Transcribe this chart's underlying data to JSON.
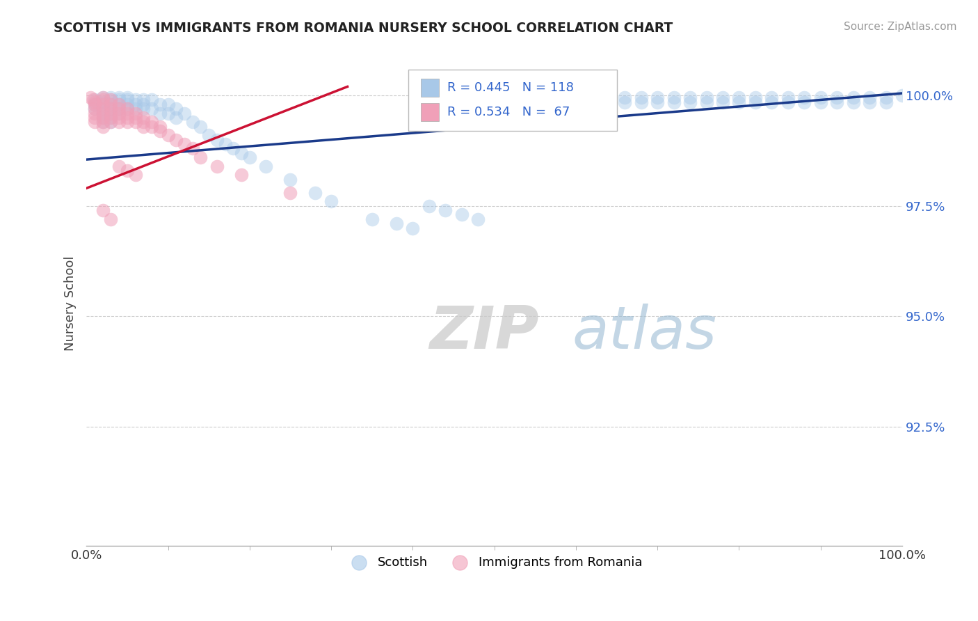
{
  "title": "SCOTTISH VS IMMIGRANTS FROM ROMANIA NURSERY SCHOOL CORRELATION CHART",
  "source_text": "Source: ZipAtlas.com",
  "ylabel": "Nursery School",
  "x_min": 0.0,
  "x_max": 1.0,
  "y_min": 0.898,
  "y_max": 1.008,
  "y_ticks": [
    0.925,
    0.95,
    0.975,
    1.0
  ],
  "y_tick_labels": [
    "92.5%",
    "95.0%",
    "97.5%",
    "100.0%"
  ],
  "x_tick_labels": [
    "0.0%",
    "100.0%"
  ],
  "blue_color": "#a8c8e8",
  "pink_color": "#f0a0b8",
  "blue_line_color": "#1a3a8a",
  "pink_line_color": "#cc1133",
  "legend_label_blue": "Scottish",
  "legend_label_pink": "Immigrants from Romania",
  "watermark_zip": "ZIP",
  "watermark_atlas": "atlas",
  "blue_line_x0": 0.0,
  "blue_line_x1": 1.0,
  "blue_line_y0": 0.9855,
  "blue_line_y1": 1.0005,
  "pink_line_x0": 0.0,
  "pink_line_x1": 0.32,
  "pink_line_y0": 0.979,
  "pink_line_y1": 1.002,
  "blue_scatter_x": [
    0.01,
    0.01,
    0.01,
    0.02,
    0.02,
    0.02,
    0.02,
    0.02,
    0.02,
    0.02,
    0.03,
    0.03,
    0.03,
    0.03,
    0.03,
    0.03,
    0.03,
    0.04,
    0.04,
    0.04,
    0.04,
    0.04,
    0.05,
    0.05,
    0.05,
    0.05,
    0.06,
    0.06,
    0.06,
    0.07,
    0.07,
    0.07,
    0.08,
    0.08,
    0.09,
    0.09,
    0.1,
    0.1,
    0.11,
    0.11,
    0.12,
    0.13,
    0.14,
    0.15,
    0.16,
    0.17,
    0.18,
    0.19,
    0.2,
    0.22,
    0.25,
    0.28,
    0.3,
    0.35,
    0.38,
    0.4,
    0.42,
    0.44,
    0.46,
    0.48,
    0.5,
    0.52,
    0.54,
    0.56,
    0.58,
    0.6,
    0.62,
    0.64,
    0.66,
    0.68,
    0.7,
    0.72,
    0.74,
    0.76,
    0.78,
    0.8,
    0.82,
    0.84,
    0.86,
    0.88,
    0.9,
    0.92,
    0.94,
    0.96,
    0.98,
    1.0,
    0.42,
    0.43,
    0.44,
    0.45,
    0.46,
    0.47,
    0.48,
    0.5,
    0.52,
    0.54,
    0.56,
    0.58,
    0.6,
    0.62,
    0.64,
    0.66,
    0.68,
    0.7,
    0.72,
    0.74,
    0.76,
    0.78,
    0.8,
    0.82,
    0.84,
    0.86,
    0.88,
    0.9,
    0.92,
    0.94,
    0.96,
    0.98
  ],
  "blue_scatter_y": [
    0.999,
    0.998,
    0.997,
    0.9995,
    0.9985,
    0.998,
    0.997,
    0.996,
    0.995,
    0.994,
    0.9995,
    0.999,
    0.998,
    0.997,
    0.996,
    0.995,
    0.994,
    0.9995,
    0.999,
    0.998,
    0.997,
    0.996,
    0.9995,
    0.999,
    0.998,
    0.997,
    0.999,
    0.998,
    0.997,
    0.999,
    0.998,
    0.997,
    0.999,
    0.997,
    0.998,
    0.996,
    0.998,
    0.996,
    0.997,
    0.995,
    0.996,
    0.994,
    0.993,
    0.991,
    0.99,
    0.989,
    0.988,
    0.987,
    0.986,
    0.984,
    0.981,
    0.978,
    0.976,
    0.972,
    0.971,
    0.97,
    0.975,
    0.974,
    0.973,
    0.972,
    0.9995,
    0.9995,
    0.9995,
    0.9995,
    0.9995,
    0.9995,
    0.9995,
    0.9995,
    0.9995,
    0.9995,
    0.9995,
    0.9995,
    0.9995,
    0.9995,
    0.9995,
    0.9995,
    0.9995,
    0.9995,
    0.9995,
    0.9995,
    0.9995,
    0.9995,
    0.9995,
    0.9995,
    0.9995,
    1.0,
    0.9985,
    0.9985,
    0.9985,
    0.9985,
    0.9985,
    0.9985,
    0.9985,
    0.9985,
    0.9985,
    0.9985,
    0.9985,
    0.9985,
    0.9985,
    0.9985,
    0.9985,
    0.9985,
    0.9985,
    0.9985,
    0.9985,
    0.9985,
    0.9985,
    0.9985,
    0.9985,
    0.9985,
    0.9985,
    0.9985,
    0.9985,
    0.9985,
    0.9985,
    0.9985,
    0.9985,
    0.9985
  ],
  "pink_scatter_x": [
    0.005,
    0.008,
    0.01,
    0.01,
    0.01,
    0.01,
    0.01,
    0.01,
    0.02,
    0.02,
    0.02,
    0.02,
    0.02,
    0.02,
    0.02,
    0.02,
    0.03,
    0.03,
    0.03,
    0.03,
    0.03,
    0.03,
    0.04,
    0.04,
    0.04,
    0.04,
    0.04,
    0.05,
    0.05,
    0.05,
    0.05,
    0.06,
    0.06,
    0.06,
    0.07,
    0.07,
    0.07,
    0.08,
    0.08,
    0.09,
    0.09,
    0.1,
    0.11,
    0.12,
    0.13,
    0.04,
    0.05,
    0.06,
    0.14,
    0.16,
    0.19,
    0.25,
    0.02,
    0.03
  ],
  "pink_scatter_y": [
    0.9995,
    0.999,
    0.9985,
    0.998,
    0.997,
    0.996,
    0.995,
    0.994,
    0.9995,
    0.999,
    0.998,
    0.997,
    0.996,
    0.995,
    0.994,
    0.993,
    0.999,
    0.998,
    0.997,
    0.996,
    0.995,
    0.994,
    0.998,
    0.997,
    0.996,
    0.995,
    0.994,
    0.997,
    0.996,
    0.995,
    0.994,
    0.996,
    0.995,
    0.994,
    0.995,
    0.994,
    0.993,
    0.994,
    0.993,
    0.993,
    0.992,
    0.991,
    0.99,
    0.989,
    0.988,
    0.984,
    0.983,
    0.982,
    0.986,
    0.984,
    0.982,
    0.978,
    0.974,
    0.972
  ]
}
